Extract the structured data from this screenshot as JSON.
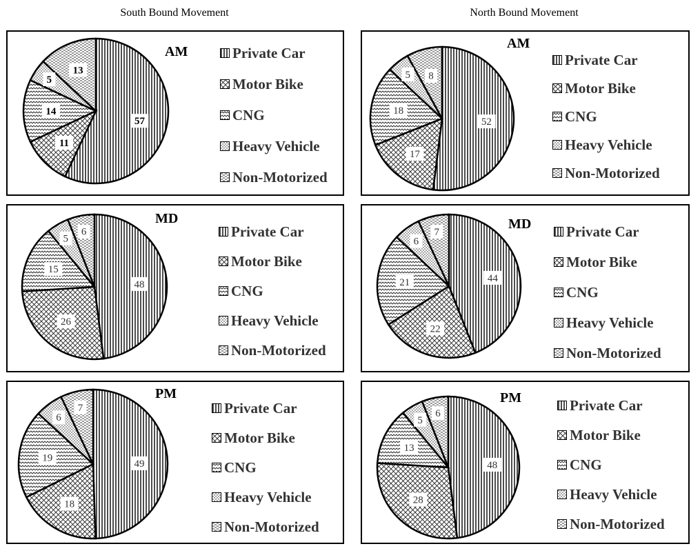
{
  "headers": {
    "south": "South Bound Movement",
    "north": "North Bound Movement"
  },
  "legend_labels": [
    "Private Car",
    "Motor Bike",
    "CNG",
    "Heavy Vehicle",
    "Non-Motorized"
  ],
  "chart_data": [
    {
      "type": "pie",
      "direction": "South Bound Movement",
      "period": "AM",
      "categories": [
        "Private Car",
        "Motor Bike",
        "CNG",
        "Heavy Vehicle",
        "Non-Motorized"
      ],
      "values": [
        57,
        11,
        14,
        5,
        13
      ]
    },
    {
      "type": "pie",
      "direction": "North Bound Movement",
      "period": "AM",
      "categories": [
        "Private Car",
        "Motor Bike",
        "CNG",
        "Heavy Vehicle",
        "Non-Motorized"
      ],
      "values": [
        52,
        17,
        18,
        5,
        8
      ]
    },
    {
      "type": "pie",
      "direction": "South Bound Movement",
      "period": "MD",
      "categories": [
        "Private Car",
        "Motor Bike",
        "CNG",
        "Heavy Vehicle",
        "Non-Motorized"
      ],
      "values": [
        48,
        26,
        15,
        5,
        6
      ]
    },
    {
      "type": "pie",
      "direction": "North Bound Movement",
      "period": "MD",
      "categories": [
        "Private Car",
        "Motor Bike",
        "CNG",
        "Heavy Vehicle",
        "Non-Motorized"
      ],
      "values": [
        44,
        22,
        21,
        6,
        7
      ]
    },
    {
      "type": "pie",
      "direction": "South Bound Movement",
      "period": "PM",
      "categories": [
        "Private Car",
        "Motor Bike",
        "CNG",
        "Heavy Vehicle",
        "Non-Motorized"
      ],
      "values": [
        49,
        18,
        19,
        6,
        7
      ]
    },
    {
      "type": "pie",
      "direction": "North Bound Movement",
      "period": "PM",
      "categories": [
        "Private Car",
        "Motor Bike",
        "CNG",
        "Heavy Vehicle",
        "Non-Motorized"
      ],
      "values": [
        48,
        28,
        13,
        5,
        6
      ]
    }
  ]
}
